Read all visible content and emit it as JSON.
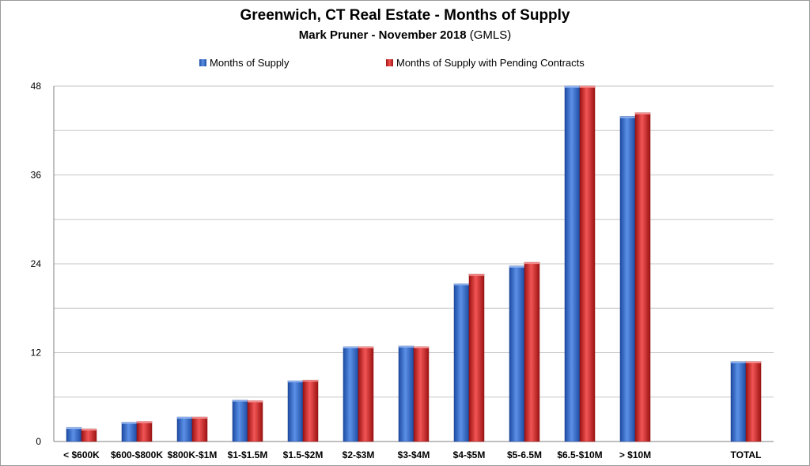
{
  "chart_data": {
    "type": "bar",
    "title": "Greenwich, CT Real Estate - Months of Supply",
    "subtitle_bold": "Mark Pruner -  November 2018",
    "subtitle_plain": "(GMLS)",
    "xlabel": "",
    "ylabel": "",
    "ylim": [
      0,
      48
    ],
    "yticks": [
      "0",
      "12",
      "24",
      "36",
      "48"
    ],
    "grid": true,
    "legend_position": "top",
    "categories": [
      "< $600K",
      "$600-$800K",
      "$800K-$1M",
      "$1-$1.5M",
      "$1.5-$2M",
      "$2-$3M",
      "$3-$4M",
      "$4-$5M",
      "$5-6.5M",
      "$6.5-$10M",
      "> $10M",
      "",
      "TOTAL"
    ],
    "series": [
      {
        "name": "Months of Supply",
        "color": "#3a6fd0",
        "values": [
          1.9,
          2.6,
          3.3,
          5.6,
          8.2,
          12.8,
          12.9,
          21.3,
          23.7,
          48,
          43.9,
          null,
          10.8
        ]
      },
      {
        "name": "Months of Supply with Pending Contracts",
        "color": "#d93a3a",
        "values": [
          1.7,
          2.7,
          3.3,
          5.5,
          8.3,
          12.8,
          12.8,
          22.6,
          24.2,
          48,
          44.4,
          null,
          10.8
        ]
      }
    ]
  }
}
